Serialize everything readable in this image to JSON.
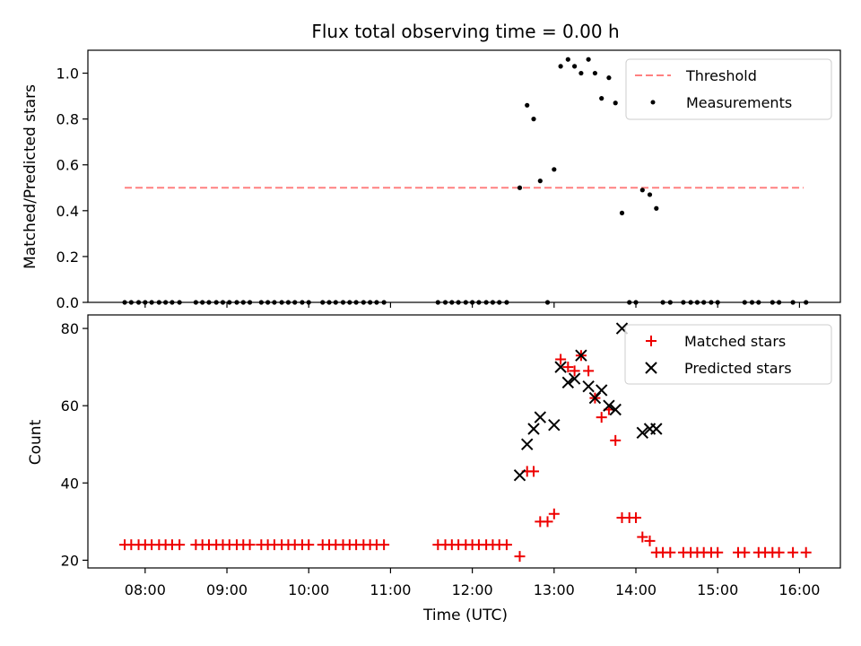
{
  "chart_data": [
    {
      "type": "scatter",
      "title": "Flux total observing time = 0.00 h",
      "ylabel": "Matched/Predicted stars",
      "xlabel": "",
      "x_unit": "hours UTC",
      "xlim": [
        7.3,
        16.5
      ],
      "ylim": [
        0,
        1.1
      ],
      "x_ticks": [
        8,
        9,
        10,
        11,
        12,
        13,
        14,
        15,
        16
      ],
      "y_ticks": [
        0.0,
        0.2,
        0.4,
        0.6,
        0.8,
        1.0
      ],
      "y_tick_labels": [
        "0.0",
        "0.2",
        "0.4",
        "0.6",
        "0.8",
        "1.0"
      ],
      "legend_position": "top-right",
      "threshold": {
        "name": "Threshold",
        "value": 0.5,
        "x": [
          7.75,
          16.05
        ],
        "color": "#ff8080"
      },
      "series": [
        {
          "name": "Measurements",
          "color": "#000000",
          "points": [
            [
              7.75,
              0
            ],
            [
              7.83,
              0
            ],
            [
              7.92,
              0
            ],
            [
              8.0,
              0
            ],
            [
              8.08,
              0
            ],
            [
              8.17,
              0
            ],
            [
              8.25,
              0
            ],
            [
              8.33,
              0
            ],
            [
              8.42,
              0
            ],
            [
              8.62,
              0
            ],
            [
              8.7,
              0
            ],
            [
              8.78,
              0
            ],
            [
              8.87,
              0
            ],
            [
              8.95,
              0
            ],
            [
              9.03,
              0
            ],
            [
              9.12,
              0
            ],
            [
              9.2,
              0
            ],
            [
              9.28,
              0
            ],
            [
              9.42,
              0
            ],
            [
              9.5,
              0
            ],
            [
              9.58,
              0
            ],
            [
              9.67,
              0
            ],
            [
              9.75,
              0
            ],
            [
              9.83,
              0
            ],
            [
              9.92,
              0
            ],
            [
              10.0,
              0
            ],
            [
              10.17,
              0
            ],
            [
              10.25,
              0
            ],
            [
              10.33,
              0
            ],
            [
              10.42,
              0
            ],
            [
              10.5,
              0
            ],
            [
              10.58,
              0
            ],
            [
              10.67,
              0
            ],
            [
              10.75,
              0
            ],
            [
              10.83,
              0
            ],
            [
              10.92,
              0
            ],
            [
              11.58,
              0
            ],
            [
              11.67,
              0
            ],
            [
              11.75,
              0
            ],
            [
              11.83,
              0
            ],
            [
              11.92,
              0
            ],
            [
              12.0,
              0
            ],
            [
              12.08,
              0
            ],
            [
              12.17,
              0
            ],
            [
              12.25,
              0
            ],
            [
              12.33,
              0
            ],
            [
              12.42,
              0
            ],
            [
              12.58,
              0.5
            ],
            [
              12.67,
              0.86
            ],
            [
              12.75,
              0.8
            ],
            [
              12.83,
              0.53
            ],
            [
              12.92,
              0
            ],
            [
              13.0,
              0.58
            ],
            [
              13.08,
              1.03
            ],
            [
              13.17,
              1.06
            ],
            [
              13.25,
              1.03
            ],
            [
              13.33,
              1.0
            ],
            [
              13.42,
              1.06
            ],
            [
              13.5,
              1.0
            ],
            [
              13.58,
              0.89
            ],
            [
              13.67,
              0.98
            ],
            [
              13.75,
              0.87
            ],
            [
              13.83,
              0.39
            ],
            [
              13.92,
              0
            ],
            [
              14.0,
              0
            ],
            [
              14.08,
              0.49
            ],
            [
              14.17,
              0.47
            ],
            [
              14.25,
              0.41
            ],
            [
              14.33,
              0
            ],
            [
              14.42,
              0
            ],
            [
              14.58,
              0
            ],
            [
              14.67,
              0
            ],
            [
              14.75,
              0
            ],
            [
              14.83,
              0
            ],
            [
              14.92,
              0
            ],
            [
              15.0,
              0
            ],
            [
              15.33,
              0
            ],
            [
              15.42,
              0
            ],
            [
              15.5,
              0
            ],
            [
              15.67,
              0
            ],
            [
              15.75,
              0
            ],
            [
              15.92,
              0
            ],
            [
              16.08,
              0
            ]
          ]
        }
      ]
    },
    {
      "type": "scatter",
      "title": "",
      "ylabel": "Count",
      "xlabel": "Time (UTC)",
      "x_unit": "hours UTC",
      "xlim": [
        7.3,
        16.5
      ],
      "ylim": [
        18,
        83.5
      ],
      "x_ticks": [
        8,
        9,
        10,
        11,
        12,
        13,
        14,
        15,
        16
      ],
      "x_tick_labels": [
        "08:00",
        "09:00",
        "10:00",
        "11:00",
        "12:00",
        "13:00",
        "14:00",
        "15:00",
        "16:00"
      ],
      "y_ticks": [
        20,
        40,
        60,
        80
      ],
      "y_tick_labels": [
        "20",
        "40",
        "60",
        "80"
      ],
      "legend_position": "top-right",
      "series": [
        {
          "name": "Matched stars",
          "marker": "plus",
          "color": "#ee0000",
          "points": [
            [
              7.75,
              24
            ],
            [
              7.83,
              24
            ],
            [
              7.92,
              24
            ],
            [
              8.0,
              24
            ],
            [
              8.08,
              24
            ],
            [
              8.17,
              24
            ],
            [
              8.25,
              24
            ],
            [
              8.33,
              24
            ],
            [
              8.42,
              24
            ],
            [
              8.62,
              24
            ],
            [
              8.7,
              24
            ],
            [
              8.78,
              24
            ],
            [
              8.87,
              24
            ],
            [
              8.95,
              24
            ],
            [
              9.03,
              24
            ],
            [
              9.12,
              24
            ],
            [
              9.2,
              24
            ],
            [
              9.28,
              24
            ],
            [
              9.42,
              24
            ],
            [
              9.5,
              24
            ],
            [
              9.58,
              24
            ],
            [
              9.67,
              24
            ],
            [
              9.75,
              24
            ],
            [
              9.83,
              24
            ],
            [
              9.92,
              24
            ],
            [
              10.0,
              24
            ],
            [
              10.17,
              24
            ],
            [
              10.25,
              24
            ],
            [
              10.33,
              24
            ],
            [
              10.42,
              24
            ],
            [
              10.5,
              24
            ],
            [
              10.58,
              24
            ],
            [
              10.67,
              24
            ],
            [
              10.75,
              24
            ],
            [
              10.83,
              24
            ],
            [
              10.92,
              24
            ],
            [
              11.58,
              24
            ],
            [
              11.67,
              24
            ],
            [
              11.75,
              24
            ],
            [
              11.83,
              24
            ],
            [
              11.92,
              24
            ],
            [
              12.0,
              24
            ],
            [
              12.08,
              24
            ],
            [
              12.17,
              24
            ],
            [
              12.25,
              24
            ],
            [
              12.33,
              24
            ],
            [
              12.42,
              24
            ],
            [
              12.58,
              21
            ],
            [
              12.67,
              43
            ],
            [
              12.75,
              43
            ],
            [
              12.83,
              30
            ],
            [
              12.92,
              30
            ],
            [
              13.0,
              32
            ],
            [
              13.08,
              72
            ],
            [
              13.17,
              70
            ],
            [
              13.25,
              69
            ],
            [
              13.33,
              73
            ],
            [
              13.42,
              69
            ],
            [
              13.5,
              62
            ],
            [
              13.58,
              57
            ],
            [
              13.67,
              59
            ],
            [
              13.75,
              51
            ],
            [
              13.83,
              31
            ],
            [
              13.92,
              31
            ],
            [
              14.0,
              31
            ],
            [
              14.08,
              26
            ],
            [
              14.17,
              25
            ],
            [
              14.25,
              22
            ],
            [
              14.33,
              22
            ],
            [
              14.42,
              22
            ],
            [
              14.58,
              22
            ],
            [
              14.67,
              22
            ],
            [
              14.75,
              22
            ],
            [
              14.83,
              22
            ],
            [
              14.92,
              22
            ],
            [
              15.0,
              22
            ],
            [
              15.25,
              22
            ],
            [
              15.33,
              22
            ],
            [
              15.5,
              22
            ],
            [
              15.58,
              22
            ],
            [
              15.67,
              22
            ],
            [
              15.75,
              22
            ],
            [
              15.92,
              22
            ],
            [
              16.08,
              22
            ]
          ]
        },
        {
          "name": "Predicted stars",
          "marker": "x",
          "color": "#000000",
          "points": [
            [
              12.58,
              42
            ],
            [
              12.67,
              50
            ],
            [
              12.75,
              54
            ],
            [
              12.83,
              57
            ],
            [
              13.0,
              55
            ],
            [
              13.08,
              70
            ],
            [
              13.17,
              66
            ],
            [
              13.25,
              67
            ],
            [
              13.33,
              73
            ],
            [
              13.42,
              65
            ],
            [
              13.5,
              62
            ],
            [
              13.58,
              64
            ],
            [
              13.67,
              60
            ],
            [
              13.75,
              59
            ],
            [
              13.83,
              80
            ],
            [
              14.08,
              53
            ],
            [
              14.17,
              54
            ],
            [
              14.25,
              54
            ]
          ]
        }
      ]
    }
  ]
}
